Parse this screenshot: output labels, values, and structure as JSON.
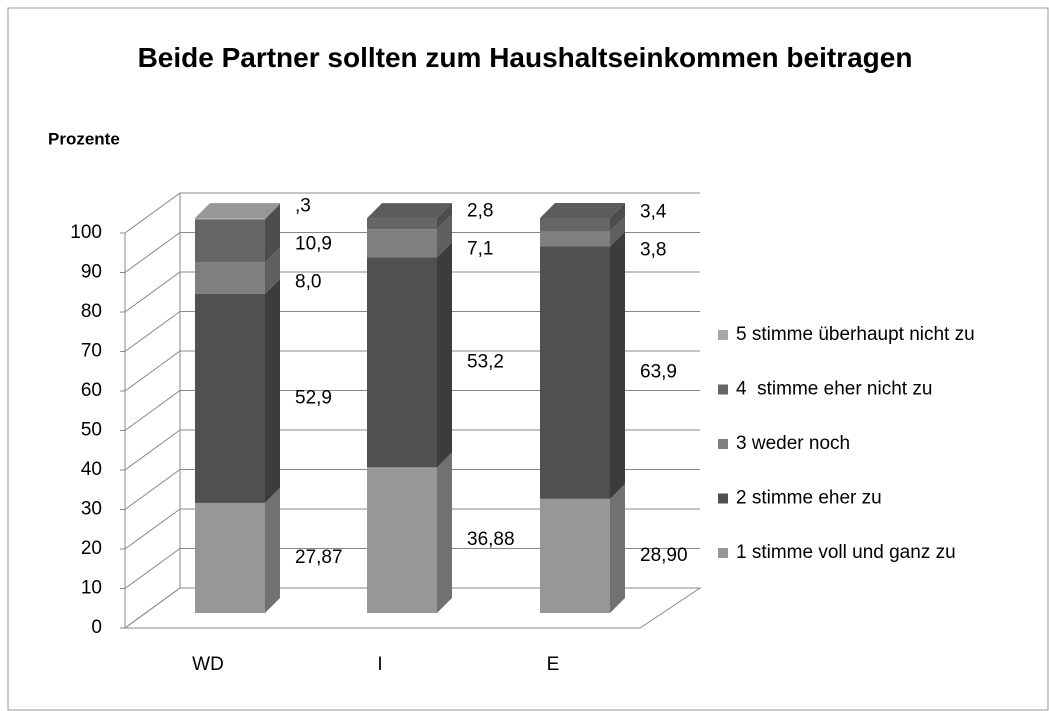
{
  "chart_data": {
    "type": "bar3d_stacked",
    "title": "Beide Partner sollten zum Haushaltseinkommen beitragen",
    "y_label": "Prozente",
    "categories": [
      "WD",
      "I",
      "E"
    ],
    "series": [
      {
        "name": "1 stimme voll und ganz zu",
        "color": "#979797",
        "values": [
          27.87,
          36.88,
          28.9
        ],
        "value_labels": [
          "27,87",
          "36,88",
          "28,90"
        ]
      },
      {
        "name": "2 stimme eher zu",
        "color": "#505050",
        "values": [
          52.9,
          53.2,
          63.9
        ],
        "value_labels": [
          "52,9",
          "53,2",
          "63,9"
        ]
      },
      {
        "name": "3 weder noch",
        "color": "#7f7f7f",
        "values": [
          8.0,
          7.1,
          3.8
        ],
        "value_labels": [
          "8,0",
          "7,1",
          "3,8"
        ]
      },
      {
        "name": "4  stimme eher nicht zu",
        "color": "#666666",
        "values": [
          10.9,
          2.8,
          3.4
        ],
        "value_labels": [
          "10,9",
          "2,8",
          "3,4"
        ]
      },
      {
        "name": "5 stimme überhaupt nicht zu",
        "color": "#a8a8a8",
        "values": [
          0.3,
          null,
          null
        ],
        "value_labels": [
          ",3",
          null,
          null
        ]
      }
    ],
    "ylim": [
      0,
      100
    ],
    "yticks": [
      0,
      10,
      20,
      30,
      40,
      50,
      60,
      70,
      80,
      90,
      100
    ],
    "grid": true,
    "legend": "right"
  }
}
